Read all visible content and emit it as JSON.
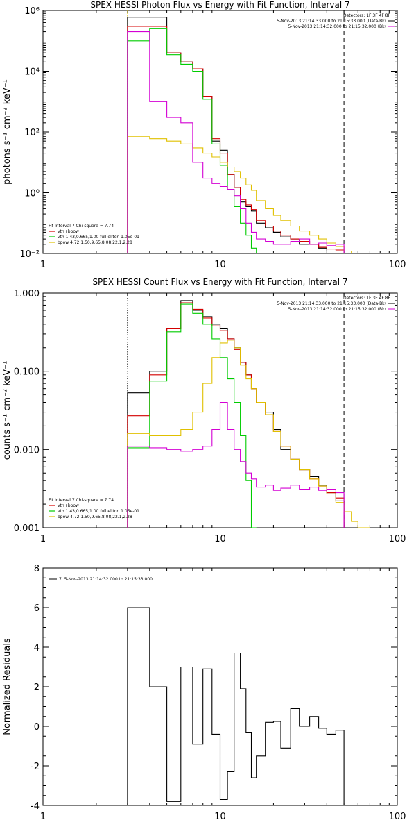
{
  "colors": {
    "total": "#000000",
    "vth_plus_bpow": "#d40000",
    "vth": "#00cc00",
    "bpow": "#e0c000",
    "bk": "#d400d4"
  },
  "chart_data": [
    {
      "type": "line",
      "title": "SPEX HESSI Photon Flux vs Energy with Fit Function, Interval 7",
      "xlabel": "",
      "ylabel": "photons s⁻¹ cm⁻² keV⁻¹",
      "xscale": "log",
      "yscale": "log",
      "xlim": [
        1,
        100
      ],
      "ylim": [
        0.01,
        1000000
      ],
      "xticks": [
        1,
        10,
        100
      ],
      "xtick_labels": [
        "1",
        "10",
        "100"
      ],
      "yticks": [
        0.01,
        1,
        100,
        10000,
        1000000
      ],
      "ytick_labels": [
        "10⁻²",
        "10⁰",
        "10²",
        "10⁴",
        "10⁶"
      ],
      "vlines": [
        {
          "x": 3,
          "style": "dotted",
          "color": "#e0c000"
        },
        {
          "x": 50,
          "style": "dashed",
          "color": "#000000"
        }
      ],
      "legend_top_right": {
        "detectors": "Detectors: 1F 3F 4F 8F",
        "lines": [
          "5-Nov-2013 21:14:33.000 to 21:15:33.000 (Data-Bk)",
          "5-Nov-2013 21:14:32.000 to 21:15:32.000 (Bk)"
        ]
      },
      "legend_bottom_left": {
        "header": "Fit Interval 7   Chi-square = 7.74",
        "entries": [
          {
            "label": "vth+bpow",
            "color": "#d40000"
          },
          {
            "label": "vth 1.43,0.665,1.00  full ellton 1.05e-01",
            "color": "#00cc00"
          },
          {
            "label": "bpow 4.72,1.50,9.65,8.08,22.1,2.28",
            "color": "#e0c000"
          }
        ]
      },
      "series": [
        {
          "name": "Data-Bk",
          "color": "#000000",
          "edges": [
            3,
            4,
            5,
            6,
            7,
            8,
            9,
            10,
            11,
            12,
            13,
            14,
            15,
            16,
            18,
            20,
            22,
            25,
            28,
            32,
            36,
            40,
            45,
            50
          ],
          "values": [
            600000,
            600000,
            40000,
            20000,
            12000,
            1500,
            50,
            25,
            4,
            1.5,
            0.5,
            0.35,
            0.25,
            0.1,
            0.07,
            0.05,
            0.035,
            0.03,
            0.02,
            0.02,
            0.015,
            0.012,
            0.012
          ]
        },
        {
          "name": "vth+bpow",
          "color": "#d40000",
          "edges": [
            3,
            4,
            5,
            6,
            7,
            8,
            9,
            10,
            11,
            12,
            13,
            14,
            15,
            16,
            18,
            20,
            22,
            25,
            28,
            32,
            36,
            40,
            45,
            50
          ],
          "values": [
            300000,
            300000,
            40000,
            20000,
            12000,
            1500,
            60,
            20,
            4,
            1.5,
            0.6,
            0.4,
            0.28,
            0.12,
            0.08,
            0.055,
            0.04,
            0.03,
            0.025,
            0.02,
            0.016,
            0.014,
            0.013
          ]
        },
        {
          "name": "vth",
          "color": "#00cc00",
          "edges": [
            3,
            4,
            5,
            6,
            7,
            8,
            9,
            10,
            11,
            12,
            13,
            14,
            15,
            16
          ],
          "values": [
            100000,
            250000,
            35000,
            17000,
            10000,
            1200,
            40,
            8,
            1.3,
            0.35,
            0.1,
            0.04,
            0.015
          ]
        },
        {
          "name": "bpow",
          "color": "#e0c000",
          "edges": [
            3,
            4,
            5,
            6,
            7,
            8,
            9,
            10,
            11,
            12,
            13,
            14,
            15,
            16,
            18,
            20,
            22,
            25,
            28,
            32,
            36,
            40,
            45,
            50,
            55,
            60
          ],
          "values": [
            70,
            60,
            50,
            40,
            30,
            20,
            15,
            10,
            7,
            5,
            3,
            1.8,
            1.2,
            0.55,
            0.3,
            0.18,
            0.12,
            0.08,
            0.055,
            0.04,
            0.03,
            0.022,
            0.017,
            0.012,
            0.01
          ]
        },
        {
          "name": "Bk",
          "color": "#d400d4",
          "edges": [
            3,
            4,
            5,
            6,
            7,
            8,
            9,
            10,
            11,
            12,
            13,
            14,
            15,
            16,
            18,
            20,
            22,
            25,
            28,
            32,
            36,
            40,
            45,
            50
          ],
          "values": [
            200000,
            1000,
            300,
            200,
            10,
            3,
            2,
            1.6,
            1.3,
            0.8,
            0.3,
            0.1,
            0.05,
            0.03,
            0.025,
            0.02,
            0.02,
            0.025,
            0.03,
            0.02,
            0.022,
            0.018,
            0.02
          ]
        }
      ]
    },
    {
      "type": "line",
      "title": "SPEX HESSI Count Flux vs Energy with Fit Function, Interval 7",
      "xlabel": "",
      "ylabel": "counts s⁻¹ cm⁻² keV⁻¹",
      "xscale": "log",
      "yscale": "log",
      "xlim": [
        1,
        100
      ],
      "ylim": [
        0.001,
        1
      ],
      "xticks": [
        1,
        10,
        100
      ],
      "xtick_labels": [
        "1",
        "10",
        "100"
      ],
      "yticks": [
        0.001,
        0.01,
        0.1,
        1
      ],
      "ytick_labels": [
        "0.001",
        "0.010",
        "0.100",
        "1.000"
      ],
      "vlines": [
        {
          "x": 3,
          "style": "dotted",
          "color": "#000000"
        },
        {
          "x": 50,
          "style": "dashed",
          "color": "#000000"
        }
      ],
      "legend_top_right": {
        "detectors": "Detectors: 1F 3F 4F 8F",
        "lines": [
          "5-Nov-2013 21:14:33.000 to 21:15:33.000 (Data-Bk)",
          "5-Nov-2013 21:14:32.000 to 21:15:32.000 (Bk)"
        ]
      },
      "legend_bottom_left": {
        "header": "Fit Interval 7   Chi-square = 7.74",
        "entries": [
          {
            "label": "vth+bpow",
            "color": "#d40000"
          },
          {
            "label": "vth 1.43,0.665,1.00  full ellton 1.05e-01",
            "color": "#00cc00"
          },
          {
            "label": "bpow 4.72,1.50,9.65,8.08,22.1,2.28",
            "color": "#e0c000"
          }
        ]
      },
      "series": [
        {
          "name": "Data-Bk",
          "color": "#000000",
          "edges": [
            3,
            4,
            5,
            6,
            7,
            8,
            9,
            10,
            11,
            12,
            13,
            14,
            15,
            16,
            18,
            20,
            22,
            25,
            28,
            32,
            36,
            40,
            45,
            50
          ],
          "values": [
            0.053,
            0.1,
            0.35,
            0.8,
            0.6,
            0.5,
            0.4,
            0.35,
            0.26,
            0.2,
            0.13,
            0.09,
            0.06,
            0.04,
            0.03,
            0.018,
            0.01,
            0.0075,
            0.0055,
            0.0045,
            0.0035,
            0.0028,
            0.0022
          ]
        },
        {
          "name": "vth+bpow",
          "color": "#d40000",
          "edges": [
            3,
            4,
            5,
            6,
            7,
            8,
            9,
            10,
            11,
            12,
            13,
            14,
            15,
            16,
            18,
            20,
            22,
            25,
            28,
            32,
            36,
            40,
            45,
            50
          ],
          "values": [
            0.027,
            0.09,
            0.35,
            0.75,
            0.62,
            0.48,
            0.38,
            0.33,
            0.26,
            0.19,
            0.13,
            0.09,
            0.06,
            0.04,
            0.028,
            0.017,
            0.011,
            0.0075,
            0.0055,
            0.0042,
            0.0034,
            0.0028,
            0.0024
          ]
        },
        {
          "name": "vth",
          "color": "#00cc00",
          "edges": [
            3,
            4,
            5,
            6,
            7,
            8,
            9,
            10,
            11,
            12,
            13,
            14,
            15,
            16
          ],
          "values": [
            0.0105,
            0.075,
            0.32,
            0.72,
            0.55,
            0.4,
            0.26,
            0.15,
            0.08,
            0.04,
            0.015,
            0.004,
            0.001
          ]
        },
        {
          "name": "bpow",
          "color": "#e0c000",
          "edges": [
            3,
            4,
            5,
            6,
            7,
            8,
            9,
            10,
            11,
            12,
            13,
            14,
            15,
            16,
            18,
            20,
            22,
            25,
            28,
            32,
            36,
            40,
            45,
            50,
            55,
            60,
            70,
            80
          ],
          "values": [
            0.016,
            0.015,
            0.015,
            0.018,
            0.03,
            0.07,
            0.15,
            0.23,
            0.25,
            0.2,
            0.12,
            0.08,
            0.06,
            0.04,
            0.028,
            0.017,
            0.011,
            0.0075,
            0.0055,
            0.0042,
            0.0034,
            0.0027,
            0.0021,
            0.0016,
            0.0012,
            0.001,
            0.0009
          ]
        },
        {
          "name": "Bk",
          "color": "#d400d4",
          "edges": [
            3,
            4,
            5,
            6,
            7,
            8,
            9,
            10,
            11,
            12,
            13,
            14,
            15,
            16,
            18,
            20,
            22,
            25,
            28,
            32,
            36,
            40,
            45,
            50
          ],
          "values": [
            0.011,
            0.0105,
            0.01,
            0.0095,
            0.01,
            0.011,
            0.018,
            0.04,
            0.018,
            0.01,
            0.007,
            0.005,
            0.0042,
            0.0033,
            0.0035,
            0.003,
            0.0032,
            0.0035,
            0.0031,
            0.0033,
            0.003,
            0.0031,
            0.0028
          ]
        }
      ]
    },
    {
      "type": "line",
      "title": "",
      "xlabel": "",
      "ylabel": "Normalized Residuals",
      "xscale": "log",
      "yscale": "linear",
      "xlim": [
        1,
        100
      ],
      "ylim": [
        -4,
        8
      ],
      "xticks": [
        1,
        10,
        100
      ],
      "xtick_labels": [
        "1",
        "10",
        "100"
      ],
      "yticks": [
        -4,
        -2,
        0,
        2,
        4,
        6,
        8
      ],
      "ytick_labels": [
        "-4",
        "-2",
        "0",
        "2",
        "4",
        "6",
        "8"
      ],
      "legend": "7.  5-Nov-2013 21:14:32.000 to 21:15:33.000",
      "series": [
        {
          "name": "7.  5-Nov-2013 21:14:32.000 to 21:15:33.000",
          "color": "#000000",
          "edges": [
            3,
            4,
            5,
            6,
            7,
            8,
            9,
            10,
            11,
            12,
            13,
            14,
            15,
            16,
            18,
            20,
            22,
            25,
            28,
            32,
            36,
            40,
            45,
            50
          ],
          "values": [
            6.0,
            2.0,
            -3.8,
            3.0,
            -0.9,
            2.9,
            -0.4,
            -3.7,
            -2.3,
            3.7,
            1.9,
            -0.3,
            -2.6,
            -1.5,
            0.2,
            0.25,
            -1.1,
            0.9,
            0.0,
            0.5,
            -0.1,
            -0.4,
            -0.2
          ]
        }
      ]
    }
  ]
}
